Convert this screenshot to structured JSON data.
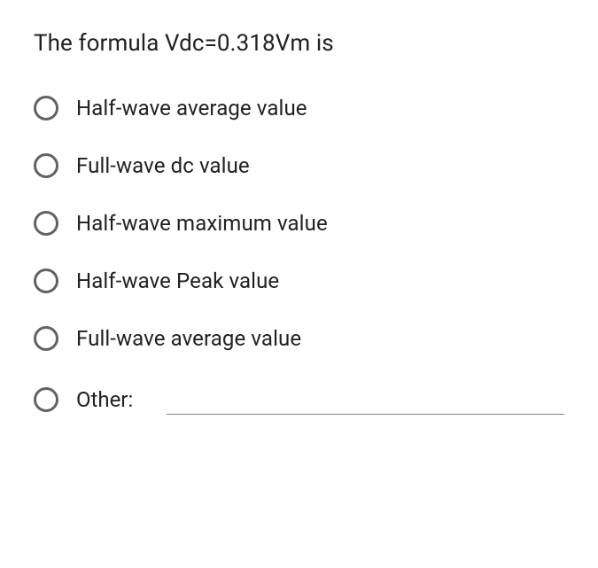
{
  "question": {
    "title": "The formula Vdc=0.318Vm is"
  },
  "options": [
    {
      "label": "Half-wave average value"
    },
    {
      "label": "Full-wave dc value"
    },
    {
      "label": "Half-wave maximum value"
    },
    {
      "label": "Half-wave Peak value"
    },
    {
      "label": "Full-wave average value"
    }
  ],
  "other": {
    "label": "Other:",
    "value": ""
  },
  "colors": {
    "text": "#202124",
    "radio_border": "#5f6368",
    "input_underline": "#80868b",
    "background": "#ffffff"
  }
}
